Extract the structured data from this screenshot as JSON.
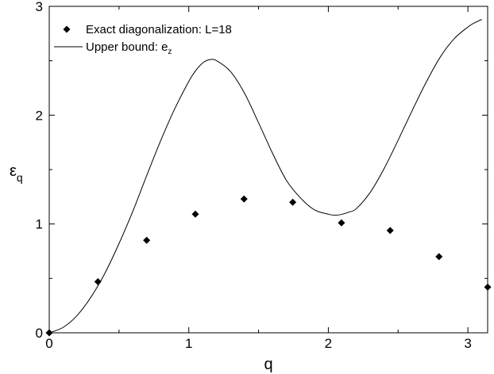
{
  "chart_data": {
    "type": "scatter",
    "xlabel": "q",
    "ylabel": "ε",
    "ylabel_subscript": "q",
    "xlim": [
      0,
      3.14159
    ],
    "ylim": [
      0,
      3
    ],
    "x_ticks": [
      0,
      1,
      2,
      3
    ],
    "y_ticks": [
      0,
      1,
      2,
      3
    ],
    "grid": false,
    "legend_position": "top-left",
    "series": [
      {
        "name": "Exact diagonalization: L=18",
        "kind": "points",
        "marker": "diamond",
        "color": "#000000",
        "x": [
          0,
          0.349,
          0.698,
          1.047,
          1.396,
          1.745,
          2.094,
          2.443,
          2.793,
          3.142
        ],
        "y": [
          0.0,
          0.47,
          0.85,
          1.09,
          1.23,
          1.2,
          1.01,
          0.94,
          0.7,
          0.42
        ]
      },
      {
        "name": "Upper bound: e",
        "name_subscript": "z",
        "kind": "line",
        "color": "#000000",
        "x": [
          0,
          0.1,
          0.2,
          0.3,
          0.4,
          0.5,
          0.6,
          0.7,
          0.8,
          0.9,
          1.0,
          1.05,
          1.1,
          1.15,
          1.2,
          1.3,
          1.4,
          1.5,
          1.6,
          1.7,
          1.8,
          1.9,
          2.0,
          2.05,
          2.1,
          2.15,
          2.2,
          2.3,
          2.4,
          2.5,
          2.6,
          2.7,
          2.8,
          2.9,
          3.0,
          3.05,
          3.1
        ],
        "y": [
          0.0,
          0.05,
          0.16,
          0.33,
          0.55,
          0.82,
          1.12,
          1.45,
          1.77,
          2.06,
          2.31,
          2.41,
          2.48,
          2.51,
          2.5,
          2.4,
          2.2,
          1.93,
          1.65,
          1.4,
          1.24,
          1.13,
          1.09,
          1.08,
          1.09,
          1.11,
          1.14,
          1.29,
          1.51,
          1.77,
          2.04,
          2.3,
          2.53,
          2.7,
          2.81,
          2.85,
          2.88
        ]
      }
    ]
  }
}
